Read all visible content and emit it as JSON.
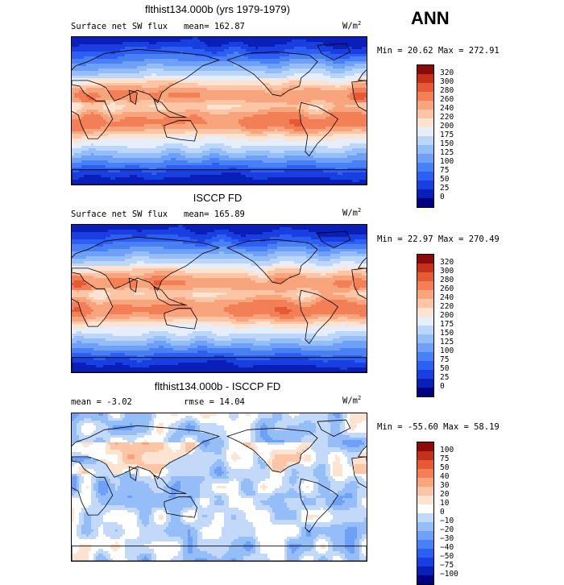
{
  "season": "ANN",
  "units_label": "W/m",
  "units_exp": "2",
  "panels": [
    {
      "title": "flthist134.000b (yrs 1979-1979)",
      "left_label": "Surface net SW flux",
      "mid_label": "mean= 162.87",
      "stats": "Min =  20.62 Max = 272.91",
      "kind": "model"
    },
    {
      "title": "ISCCP FD",
      "left_label": "Surface net SW flux",
      "mid_label": "mean= 165.89",
      "stats": "Min =  22.97 Max = 270.49",
      "kind": "obs"
    },
    {
      "title": "flthist134.000b - ISCCP FD",
      "left_label": "mean =  -3.02",
      "mid_label": "rmse =  14.04",
      "stats": "Min = -55.60 Max =  58.19",
      "kind": "diff"
    }
  ],
  "chart_data": [
    {
      "type": "heatmap",
      "title": "flthist134.000b (yrs 1979-1979)",
      "variable": "Surface net SW flux",
      "units": "W/m2",
      "mean": 162.87,
      "min": 20.62,
      "max": 272.91,
      "levels": [
        0,
        25,
        50,
        75,
        100,
        125,
        150,
        175,
        200,
        220,
        240,
        260,
        280,
        300,
        320
      ],
      "colors": [
        "#000080",
        "#0a1fb8",
        "#1a3fe0",
        "#2e5ff5",
        "#4a80f5",
        "#6fa0f7",
        "#95bdf8",
        "#bcd6fa",
        "#e6eefb",
        "#fde3d0",
        "#fbc5a6",
        "#f8a47c",
        "#f27f55",
        "#e55a34",
        "#c5301a",
        "#8b0a0a"
      ]
    },
    {
      "type": "heatmap",
      "title": "ISCCP FD",
      "variable": "Surface net SW flux",
      "units": "W/m2",
      "mean": 165.89,
      "min": 22.97,
      "max": 270.49,
      "levels": [
        0,
        25,
        50,
        75,
        100,
        125,
        150,
        175,
        200,
        220,
        240,
        260,
        280,
        300,
        320
      ],
      "colors": [
        "#000080",
        "#0a1fb8",
        "#1a3fe0",
        "#2e5ff5",
        "#4a80f5",
        "#6fa0f7",
        "#95bdf8",
        "#bcd6fa",
        "#e6eefb",
        "#fde3d0",
        "#fbc5a6",
        "#f8a47c",
        "#f27f55",
        "#e55a34",
        "#c5301a",
        "#8b0a0a"
      ]
    },
    {
      "type": "heatmap",
      "title": "flthist134.000b - ISCCP FD",
      "units": "W/m2",
      "mean": -3.02,
      "rmse": 14.04,
      "min": -55.6,
      "max": 58.19,
      "levels": [
        -100,
        -75,
        -50,
        -40,
        -30,
        -20,
        -10,
        0,
        10,
        20,
        30,
        40,
        50,
        75,
        100
      ],
      "colors": [
        "#000080",
        "#0a1fb8",
        "#1a3fe0",
        "#2e5ff5",
        "#4a80f5",
        "#6fa0f7",
        "#95bdf8",
        "#c3d9fa",
        "#ffffff",
        "#fde3d0",
        "#fbc5a6",
        "#f8a47c",
        "#f27f55",
        "#e55a34",
        "#c5301a",
        "#8b0a0a"
      ]
    }
  ]
}
